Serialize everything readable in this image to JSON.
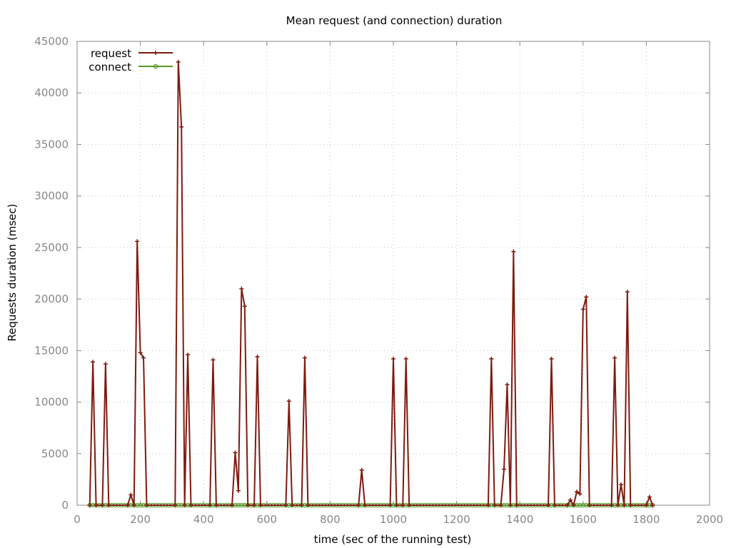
{
  "chart_data": {
    "type": "line",
    "title": "Mean request (and connection) duration",
    "xlabel": "time (sec of the running test)",
    "ylabel": "Requests duration (msec)",
    "xlim": [
      0,
      2000
    ],
    "ylim": [
      0,
      45000
    ],
    "x_ticks": [
      "0",
      "200",
      "400",
      "600",
      "800",
      "1000",
      "1200",
      "1400",
      "1600",
      "1800",
      "2000"
    ],
    "y_ticks": [
      "0",
      "5000",
      "10000",
      "15000",
      "20000",
      "25000",
      "30000",
      "35000",
      "40000",
      "45000"
    ],
    "grid": true,
    "legend_position": "top-left",
    "series": [
      {
        "name": "request",
        "color": "#7f1a0f",
        "marker": "plus",
        "points": [
          [
            40,
            0
          ],
          [
            50,
            13900
          ],
          [
            60,
            0
          ],
          [
            80,
            0
          ],
          [
            90,
            13700
          ],
          [
            100,
            0
          ],
          [
            160,
            0
          ],
          [
            170,
            1000
          ],
          [
            180,
            0
          ],
          [
            190,
            25600
          ],
          [
            200,
            14800
          ],
          [
            210,
            14300
          ],
          [
            220,
            0
          ],
          [
            310,
            0
          ],
          [
            320,
            43000
          ],
          [
            330,
            36700
          ],
          [
            340,
            0
          ],
          [
            350,
            14600
          ],
          [
            360,
            0
          ],
          [
            420,
            0
          ],
          [
            430,
            14100
          ],
          [
            440,
            0
          ],
          [
            490,
            0
          ],
          [
            500,
            5100
          ],
          [
            510,
            1400
          ],
          [
            520,
            21000
          ],
          [
            530,
            19300
          ],
          [
            540,
            0
          ],
          [
            560,
            0
          ],
          [
            570,
            14400
          ],
          [
            580,
            0
          ],
          [
            660,
            0
          ],
          [
            670,
            10100
          ],
          [
            680,
            0
          ],
          [
            710,
            0
          ],
          [
            720,
            14300
          ],
          [
            730,
            0
          ],
          [
            890,
            0
          ],
          [
            900,
            3400
          ],
          [
            910,
            0
          ],
          [
            990,
            0
          ],
          [
            1000,
            14200
          ],
          [
            1010,
            0
          ],
          [
            1030,
            0
          ],
          [
            1040,
            14200
          ],
          [
            1050,
            0
          ],
          [
            1300,
            0
          ],
          [
            1310,
            14200
          ],
          [
            1320,
            0
          ],
          [
            1340,
            0
          ],
          [
            1350,
            3500
          ],
          [
            1360,
            11700
          ],
          [
            1370,
            0
          ],
          [
            1380,
            24600
          ],
          [
            1390,
            0
          ],
          [
            1490,
            0
          ],
          [
            1500,
            14200
          ],
          [
            1510,
            0
          ],
          [
            1550,
            0
          ],
          [
            1560,
            500
          ],
          [
            1570,
            0
          ],
          [
            1580,
            1300
          ],
          [
            1590,
            1100
          ],
          [
            1600,
            19000
          ],
          [
            1610,
            20200
          ],
          [
            1620,
            0
          ],
          [
            1690,
            0
          ],
          [
            1700,
            14300
          ],
          [
            1710,
            0
          ],
          [
            1720,
            2000
          ],
          [
            1730,
            0
          ],
          [
            1740,
            20700
          ],
          [
            1750,
            0
          ],
          [
            1800,
            0
          ],
          [
            1810,
            800
          ],
          [
            1820,
            0
          ]
        ]
      },
      {
        "name": "connect",
        "color": "#5b9a2e",
        "marker": "circle",
        "x_start": 40,
        "x_end": 1820,
        "x_step": 10,
        "y": 0
      }
    ]
  }
}
